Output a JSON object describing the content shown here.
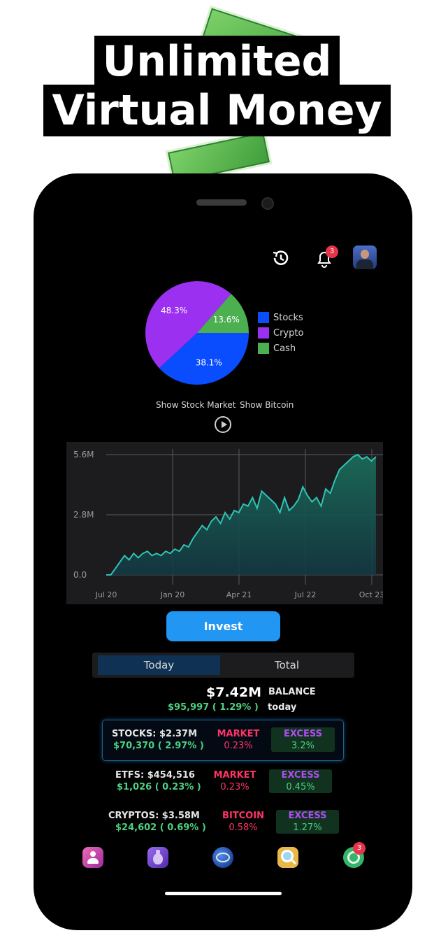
{
  "promo": {
    "headline_line1": "Unlimited",
    "headline_line2": "Virtual Money"
  },
  "header": {
    "icons": [
      "history-icon",
      "bell-icon",
      "avatar"
    ],
    "notification_count": "3"
  },
  "allocation": {
    "legend": [
      {
        "label": "Stocks",
        "color": "#0a4dff"
      },
      {
        "label": "Crypto",
        "color": "#9b30f0"
      },
      {
        "label": "Cash",
        "color": "#4caf50"
      }
    ],
    "slices": [
      {
        "label": "38.1%",
        "value": 38.1,
        "color": "#0a4dff"
      },
      {
        "label": "48.3%",
        "value": 48.3,
        "color": "#9b30f0"
      },
      {
        "label": "13.6%",
        "value": 13.6,
        "color": "#4caf50"
      }
    ]
  },
  "links": {
    "show_stock_market": "Show Stock Market",
    "show_bitcoin": "Show Bitcoin"
  },
  "chart_data": {
    "type": "area",
    "x_tick_labels": [
      "Jul 20",
      "Jan 20",
      "Apr 21",
      "Jul 22",
      "Oct 23"
    ],
    "y_tick_labels": [
      "5.6M",
      "2.8M",
      "0.0"
    ],
    "ylim": [
      0,
      5.6
    ],
    "grid": true,
    "values": [
      0.0,
      0.0,
      0.3,
      0.6,
      0.9,
      0.7,
      1.0,
      0.8,
      1.0,
      1.1,
      0.9,
      1.0,
      0.9,
      1.1,
      1.0,
      1.2,
      1.1,
      1.4,
      1.3,
      1.7,
      2.0,
      2.3,
      2.1,
      2.5,
      2.7,
      2.4,
      2.9,
      2.6,
      3.0,
      2.9,
      3.3,
      3.2,
      3.6,
      3.1,
      3.9,
      3.7,
      3.5,
      3.3,
      2.9,
      3.6,
      3.0,
      3.2,
      3.5,
      4.1,
      3.7,
      3.4,
      3.6,
      3.2,
      4.0,
      3.8,
      4.4,
      4.9,
      5.1,
      5.3,
      5.5,
      5.6,
      5.4,
      5.5,
      5.3,
      5.5
    ]
  },
  "invest_label": "Invest",
  "tabs": {
    "today": "Today",
    "total": "Total"
  },
  "balance": {
    "amount": "$7.42M",
    "label": "BALANCE",
    "change": "$95,997 ( 1.29% )",
    "period": "today"
  },
  "holdings": [
    {
      "name_value": "STOCKS: $2.37M",
      "change": "$70,370 ( 2.97% )",
      "benchmark": "MARKET",
      "benchmark_pct": "0.23%",
      "excess": "EXCESS",
      "excess_pct": "3.2%"
    },
    {
      "name_value": "ETFS: $454,516",
      "change": "$1,026 ( 0.23% )",
      "benchmark": "MARKET",
      "benchmark_pct": "0.23%",
      "excess": "EXCESS",
      "excess_pct": "0.45%"
    },
    {
      "name_value": "CRYPTOS: $3.58M",
      "change": "$24,602 ( 0.69% )",
      "benchmark": "BITCOIN",
      "benchmark_pct": "0.58%",
      "excess": "EXCESS",
      "excess_pct": "1.27%"
    }
  ],
  "bottom_nav": {
    "items": [
      "profile-icon",
      "money-bag-icon",
      "globe-icon",
      "search-icon",
      "portfolio-chart-icon"
    ],
    "badge_count": "3",
    "colors": {
      "profile": "#c2399c",
      "bag": "#7a3fd1",
      "globe": "#1c4fb8",
      "search": "#e0b13c",
      "portfolio": "#27a85c"
    }
  }
}
